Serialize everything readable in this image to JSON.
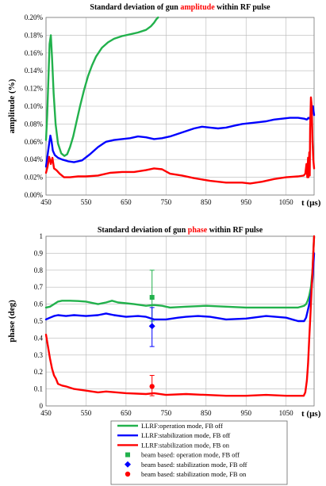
{
  "chart_data": [
    {
      "type": "line",
      "title_parts": [
        "Standard deviation of gun ",
        "amplitude",
        " within RF pulse"
      ],
      "title_highlight_color": "#ff0000",
      "ylabel": "amplitude (%)",
      "xlabel": "t (µs)",
      "xlim": [
        450,
        1120
      ],
      "ylim": [
        0,
        0.2
      ],
      "xticks": [
        "450",
        "550",
        "650",
        "750",
        "850",
        "950",
        "1050"
      ],
      "xtick_values": [
        450,
        550,
        650,
        750,
        850,
        950,
        1050
      ],
      "yticks": [
        "0.00%",
        "0.02%",
        "0.04%",
        "0.06%",
        "0.08%",
        "0.10%",
        "0.12%",
        "0.14%",
        "0.16%",
        "0.18%",
        "0.20%"
      ],
      "ytick_values": [
        0,
        0.02,
        0.04,
        0.06,
        0.08,
        0.1,
        0.12,
        0.14,
        0.16,
        0.18,
        0.2
      ],
      "grid": true,
      "series": [
        {
          "color": "#22b14c",
          "x": [
            450,
            453,
            456,
            459,
            462,
            465,
            469,
            474,
            480,
            488,
            496,
            503,
            510,
            518,
            526,
            535,
            545,
            555,
            565,
            575,
            590,
            605,
            620,
            640,
            660,
            680,
            700,
            712,
            720,
            726,
            730
          ],
          "y": [
            0.062,
            0.09,
            0.13,
            0.17,
            0.18,
            0.155,
            0.115,
            0.08,
            0.058,
            0.047,
            0.044,
            0.046,
            0.054,
            0.066,
            0.082,
            0.1,
            0.118,
            0.134,
            0.146,
            0.156,
            0.166,
            0.172,
            0.176,
            0.179,
            0.181,
            0.183,
            0.186,
            0.19,
            0.194,
            0.198,
            0.2
          ]
        },
        {
          "color": "#0000ff",
          "x": [
            450,
            454,
            458,
            461,
            464,
            467,
            472,
            480,
            490,
            505,
            520,
            540,
            560,
            580,
            600,
            620,
            640,
            660,
            680,
            700,
            720,
            740,
            760,
            780,
            800,
            820,
            840,
            860,
            880,
            900,
            920,
            940,
            960,
            980,
            1000,
            1020,
            1040,
            1060,
            1080,
            1095,
            1102,
            1106,
            1109,
            1112,
            1114,
            1117,
            1120
          ],
          "y": [
            0.032,
            0.045,
            0.058,
            0.067,
            0.06,
            0.05,
            0.045,
            0.042,
            0.04,
            0.038,
            0.037,
            0.039,
            0.046,
            0.054,
            0.06,
            0.062,
            0.063,
            0.064,
            0.066,
            0.065,
            0.063,
            0.064,
            0.066,
            0.069,
            0.072,
            0.075,
            0.077,
            0.076,
            0.075,
            0.076,
            0.078,
            0.08,
            0.081,
            0.082,
            0.083,
            0.085,
            0.086,
            0.087,
            0.087,
            0.086,
            0.085,
            0.087,
            0.086,
            0.09,
            0.096,
            0.1,
            0.09
          ]
        },
        {
          "color": "#ff0000",
          "x": [
            450,
            454,
            458,
            462,
            466,
            470,
            476,
            484,
            495,
            510,
            530,
            550,
            580,
            610,
            640,
            670,
            700,
            720,
            740,
            760,
            790,
            820,
            860,
            900,
            940,
            960,
            990,
            1020,
            1050,
            1080,
            1094,
            1098,
            1101,
            1103,
            1105,
            1106,
            1108,
            1109,
            1110,
            1112,
            1114,
            1116,
            1118,
            1120
          ],
          "y": [
            0.025,
            0.032,
            0.043,
            0.035,
            0.042,
            0.03,
            0.028,
            0.024,
            0.02,
            0.02,
            0.021,
            0.021,
            0.022,
            0.025,
            0.026,
            0.026,
            0.028,
            0.03,
            0.029,
            0.024,
            0.022,
            0.019,
            0.016,
            0.014,
            0.014,
            0.013,
            0.015,
            0.018,
            0.02,
            0.021,
            0.022,
            0.024,
            0.035,
            0.02,
            0.042,
            0.02,
            0.048,
            0.022,
            0.075,
            0.11,
            0.1,
            0.06,
            0.04,
            0.03
          ]
        }
      ]
    },
    {
      "type": "line",
      "title_parts": [
        "Standard deviation of gun ",
        "phase",
        " within RF pulse"
      ],
      "title_highlight_color": "#ff0000",
      "ylabel": "phase (deg)",
      "xlabel": "t (µs)",
      "xlim": [
        450,
        1120
      ],
      "ylim": [
        0,
        1
      ],
      "xticks": [
        "450",
        "550",
        "650",
        "750",
        "850",
        "950",
        "1050"
      ],
      "xtick_values": [
        450,
        550,
        650,
        750,
        850,
        950,
        1050
      ],
      "yticks": [
        "0",
        "0.1",
        "0.2",
        "0.3",
        "0.4",
        "0.5",
        "0.6",
        "0.7",
        "0.8",
        "0.9",
        "1"
      ],
      "ytick_values": [
        0,
        0.1,
        0.2,
        0.3,
        0.4,
        0.5,
        0.6,
        0.7,
        0.8,
        0.9,
        1
      ],
      "grid": true,
      "series": [
        {
          "color": "#22b14c",
          "label": "LLRF:operation mode, FB off",
          "x": [
            450,
            460,
            470,
            480,
            490,
            510,
            530,
            550,
            580,
            600,
            615,
            630,
            650,
            670,
            700,
            720,
            740,
            760,
            800,
            850,
            900,
            950,
            1000,
            1050,
            1080,
            1095,
            1100,
            1104,
            1108,
            1112,
            1116,
            1120
          ],
          "y": [
            0.58,
            0.585,
            0.6,
            0.615,
            0.62,
            0.62,
            0.618,
            0.615,
            0.6,
            0.61,
            0.62,
            0.61,
            0.605,
            0.6,
            0.59,
            0.595,
            0.59,
            0.58,
            0.585,
            0.59,
            0.585,
            0.58,
            0.58,
            0.58,
            0.58,
            0.59,
            0.6,
            0.62,
            0.65,
            0.7,
            0.8,
            1.0
          ]
        },
        {
          "color": "#0000ff",
          "label": "LLRF:stabilization mode, FB off",
          "x": [
            450,
            460,
            470,
            480,
            500,
            520,
            550,
            580,
            600,
            620,
            650,
            680,
            700,
            720,
            750,
            780,
            800,
            830,
            860,
            900,
            950,
            1000,
            1050,
            1080,
            1095,
            1100,
            1104,
            1108,
            1112,
            1116,
            1120
          ],
          "y": [
            0.51,
            0.52,
            0.53,
            0.535,
            0.53,
            0.535,
            0.53,
            0.535,
            0.545,
            0.535,
            0.525,
            0.53,
            0.525,
            0.51,
            0.51,
            0.52,
            0.525,
            0.53,
            0.525,
            0.51,
            0.515,
            0.53,
            0.52,
            0.5,
            0.5,
            0.52,
            0.56,
            0.6,
            0.66,
            0.75,
            0.9
          ]
        },
        {
          "color": "#ff0000",
          "label": "LLRF:stabilization mode, FB on",
          "x": [
            450,
            455,
            460,
            465,
            470,
            475,
            480,
            490,
            500,
            520,
            550,
            580,
            600,
            650,
            700,
            720,
            750,
            800,
            850,
            900,
            950,
            1000,
            1050,
            1080,
            1094,
            1098,
            1102,
            1105,
            1108,
            1111,
            1114,
            1117,
            1120
          ],
          "y": [
            0.42,
            0.35,
            0.28,
            0.22,
            0.18,
            0.16,
            0.13,
            0.12,
            0.115,
            0.1,
            0.09,
            0.08,
            0.085,
            0.075,
            0.07,
            0.075,
            0.065,
            0.07,
            0.065,
            0.06,
            0.06,
            0.065,
            0.06,
            0.06,
            0.06,
            0.08,
            0.15,
            0.25,
            0.4,
            0.55,
            0.7,
            0.85,
            1.0
          ]
        }
      ],
      "points": [
        {
          "color": "#22b14c",
          "marker": "square",
          "label": "beam based: operation mode, FB off",
          "x": 715,
          "y": 0.64,
          "err_low": 0.5,
          "err_high": 0.8
        },
        {
          "color": "#0000ff",
          "marker": "diamond",
          "label": "beam based: stabilization mode, FB off",
          "x": 715,
          "y": 0.47,
          "err_low": 0.35,
          "err_high": 0.58
        },
        {
          "color": "#ff0000",
          "marker": "circle",
          "label": "beam based: stabilization mode, FB on",
          "x": 715,
          "y": 0.115,
          "err_low": 0.06,
          "err_high": 0.18
        }
      ]
    }
  ]
}
